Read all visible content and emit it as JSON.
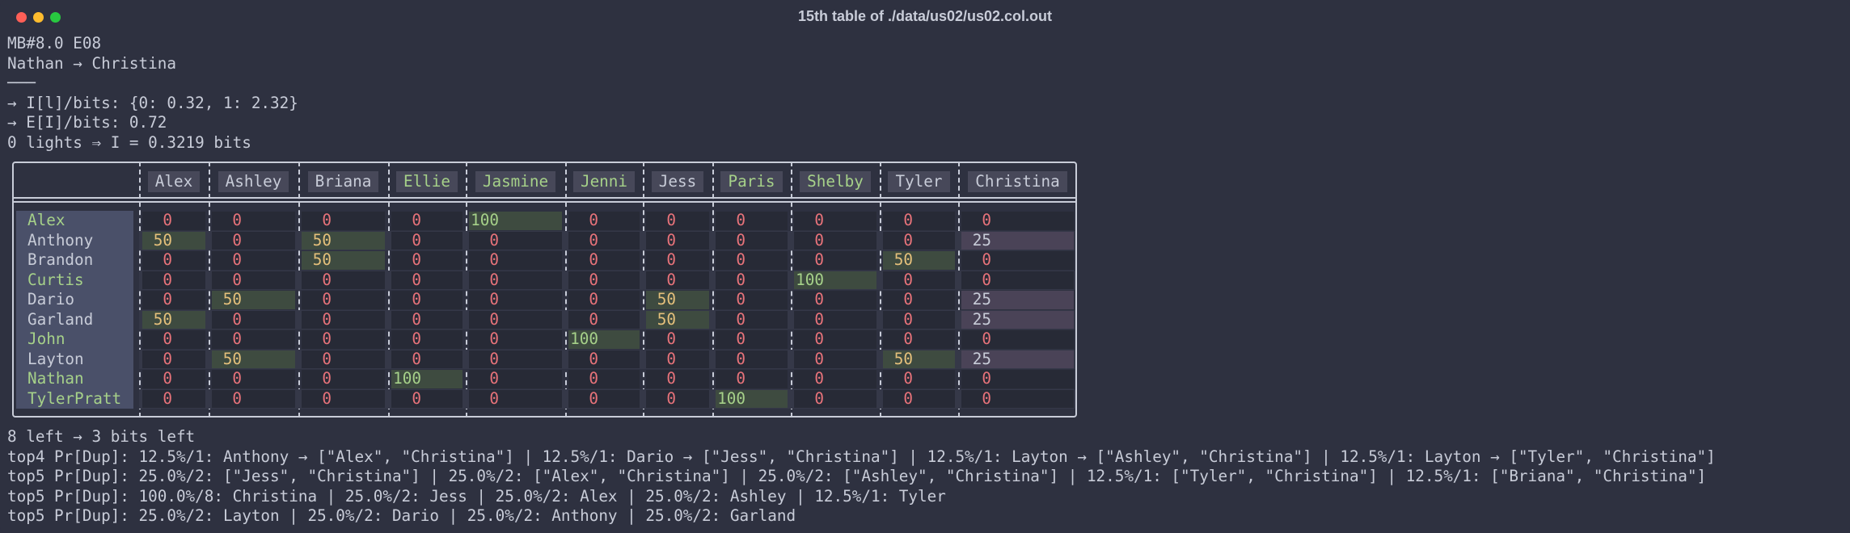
{
  "window": {
    "title": "15th table of ./data/us02/us02.col.out"
  },
  "header_lines": [
    "MB#8.0 E08",
    "Nathan → Christina",
    "───",
    "→ I[l]/bits: {0: 0.32, 1: 2.32}",
    "→ E[I]/bits: 0.72",
    "0 lights ⇒ I = 0.3219 bits"
  ],
  "table": {
    "columns": [
      {
        "name": "Alex",
        "color": "#c8ccd8"
      },
      {
        "name": "Ashley",
        "color": "#c8ccd8"
      },
      {
        "name": "Briana",
        "color": "#c8ccd8"
      },
      {
        "name": "Ellie",
        "color": "#a6d189"
      },
      {
        "name": "Jasmine",
        "color": "#a6d189"
      },
      {
        "name": "Jenni",
        "color": "#a6d189"
      },
      {
        "name": "Jess",
        "color": "#c8ccd8"
      },
      {
        "name": "Paris",
        "color": "#a6d189"
      },
      {
        "name": "Shelby",
        "color": "#a6d189"
      },
      {
        "name": "Tyler",
        "color": "#c8ccd8"
      },
      {
        "name": "Christina",
        "color": "#c8ccd8"
      }
    ],
    "rows": [
      {
        "name": "Alex",
        "color": "#a6d189",
        "values": [
          0,
          0,
          0,
          0,
          100,
          0,
          0,
          0,
          0,
          0,
          0
        ]
      },
      {
        "name": "Anthony",
        "color": "#c8ccd8",
        "values": [
          50,
          0,
          50,
          0,
          0,
          0,
          0,
          0,
          0,
          0,
          25
        ]
      },
      {
        "name": "Brandon",
        "color": "#c8ccd8",
        "values": [
          0,
          0,
          50,
          0,
          0,
          0,
          0,
          0,
          0,
          50,
          0
        ]
      },
      {
        "name": "Curtis",
        "color": "#a6d189",
        "values": [
          0,
          0,
          0,
          0,
          0,
          0,
          0,
          0,
          100,
          0,
          0
        ]
      },
      {
        "name": "Dario",
        "color": "#c8ccd8",
        "values": [
          0,
          50,
          0,
          0,
          0,
          0,
          50,
          0,
          0,
          0,
          25
        ]
      },
      {
        "name": "Garland",
        "color": "#c8ccd8",
        "values": [
          50,
          0,
          0,
          0,
          0,
          0,
          50,
          0,
          0,
          0,
          25
        ]
      },
      {
        "name": "John",
        "color": "#a6d189",
        "values": [
          0,
          0,
          0,
          0,
          0,
          100,
          0,
          0,
          0,
          0,
          0
        ]
      },
      {
        "name": "Layton",
        "color": "#c8ccd8",
        "values": [
          0,
          50,
          0,
          0,
          0,
          0,
          0,
          0,
          0,
          50,
          25
        ]
      },
      {
        "name": "Nathan",
        "color": "#a6d189",
        "values": [
          0,
          0,
          0,
          100,
          0,
          0,
          0,
          0,
          0,
          0,
          0
        ]
      },
      {
        "name": "TylerPratt",
        "color": "#a6d189",
        "values": [
          0,
          0,
          0,
          0,
          0,
          0,
          0,
          100,
          0,
          0,
          0
        ]
      }
    ]
  },
  "footer_lines": [
    "8 left → 3 bits left",
    "top4 Pr[Dup]: 12.5%/1: Anthony → [\"Alex\", \"Christina\"] | 12.5%/1: Dario → [\"Jess\", \"Christina\"] | 12.5%/1: Layton → [\"Ashley\", \"Christina\"] | 12.5%/1: Layton → [\"Tyler\", \"Christina\"]",
    "top5 Pr[Dup]: 25.0%/2: [\"Jess\", \"Christina\"] | 25.0%/2: [\"Alex\", \"Christina\"] | 25.0%/2: [\"Ashley\", \"Christina\"] | 12.5%/1: [\"Tyler\", \"Christina\"] | 12.5%/1: [\"Briana\", \"Christina\"]",
    "top5 Pr[Dup]: 100.0%/8: Christina | 25.0%/2: Jess | 25.0%/2: Alex | 25.0%/2: Ashley | 12.5%/1: Tyler",
    "top5 Pr[Dup]: 25.0%/2: Layton | 25.0%/2: Dario | 25.0%/2: Anthony | 25.0%/2: Garland"
  ]
}
